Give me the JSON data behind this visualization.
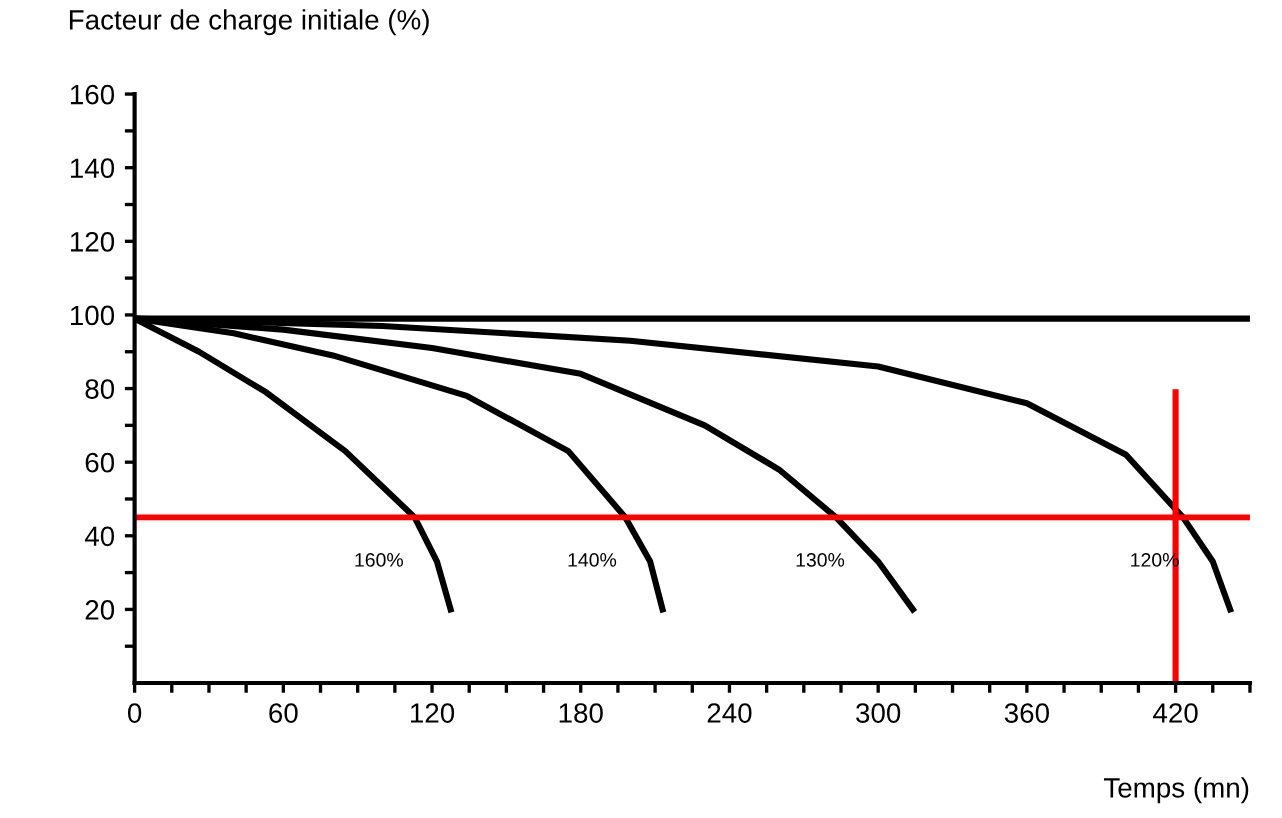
{
  "chart_data": {
    "type": "line",
    "ylabel": "Facteur de charge initiale (%)",
    "xlabel": "Temps (mn)",
    "xlim": [
      0,
      450
    ],
    "ylim": [
      0,
      160
    ],
    "xticks": [
      0,
      {
        "value": 15,
        "label": null
      },
      {
        "value": 30,
        "label": null
      },
      {
        "value": 45,
        "label": null
      },
      60,
      {
        "value": 75,
        "label": null
      },
      {
        "value": 90,
        "label": null
      },
      {
        "value": 105,
        "label": null
      },
      120,
      {
        "value": 135,
        "label": null
      },
      {
        "value": 150,
        "label": null
      },
      {
        "value": 165,
        "label": null
      },
      180,
      {
        "value": 195,
        "label": null
      },
      {
        "value": 210,
        "label": null
      },
      {
        "value": 225,
        "label": null
      },
      240,
      {
        "value": 255,
        "label": null
      },
      {
        "value": 270,
        "label": null
      },
      {
        "value": 285,
        "label": null
      },
      300,
      {
        "value": 315,
        "label": null
      },
      {
        "value": 330,
        "label": null
      },
      {
        "value": 345,
        "label": null
      },
      360,
      {
        "value": 375,
        "label": null
      },
      {
        "value": 390,
        "label": null
      },
      {
        "value": 405,
        "label": null
      },
      420,
      {
        "value": 435,
        "label": null
      },
      {
        "value": 450,
        "label": null
      }
    ],
    "yticks": [
      {
        "value": 10,
        "label": null
      },
      20,
      {
        "value": 30,
        "label": null
      },
      40,
      {
        "value": 50,
        "label": null
      },
      60,
      {
        "value": 70,
        "label": null
      },
      80,
      {
        "value": 90,
        "label": null
      },
      100,
      {
        "value": 110,
        "label": null
      },
      120,
      {
        "value": 130,
        "label": null
      },
      140,
      {
        "value": 150,
        "label": null
      },
      160
    ],
    "grid": false,
    "marker": "none",
    "line_style": "solid",
    "series": [
      {
        "color": "#000000",
        "x": [
          0,
          450
        ],
        "values": [
          99,
          99
        ]
      },
      {
        "name": "160%",
        "color": "#000000",
        "x": [
          0,
          26,
          53,
          85,
          113,
          122,
          127.5
        ],
        "values": [
          99,
          90,
          79,
          63,
          45,
          33,
          20
        ]
      },
      {
        "name": "140%",
        "color": "#000000",
        "x": [
          0,
          40,
          80,
          134,
          175,
          198,
          208,
          213
        ],
        "values": [
          99,
          95,
          89,
          78,
          63,
          45,
          33,
          20
        ]
      },
      {
        "name": "130%",
        "color": "#000000",
        "x": [
          0,
          60,
          120,
          180,
          230,
          260,
          283,
          300,
          314
        ],
        "values": [
          99,
          96,
          91,
          84,
          70,
          58,
          45,
          33,
          20
        ]
      },
      {
        "name": "120%",
        "color": "#000000",
        "x": [
          0,
          100,
          200,
          300,
          360,
          400,
          423,
          435,
          442
        ],
        "values": [
          99,
          97,
          93,
          86,
          76,
          62,
          45,
          33,
          20
        ]
      },
      {
        "color": "#ff0000",
        "x": [
          420,
          420
        ],
        "values": [
          0,
          79
        ]
      }
    ],
    "ref_lines": [
      {
        "axis": "y",
        "value": 45,
        "color": "#ff0000"
      }
    ]
  }
}
